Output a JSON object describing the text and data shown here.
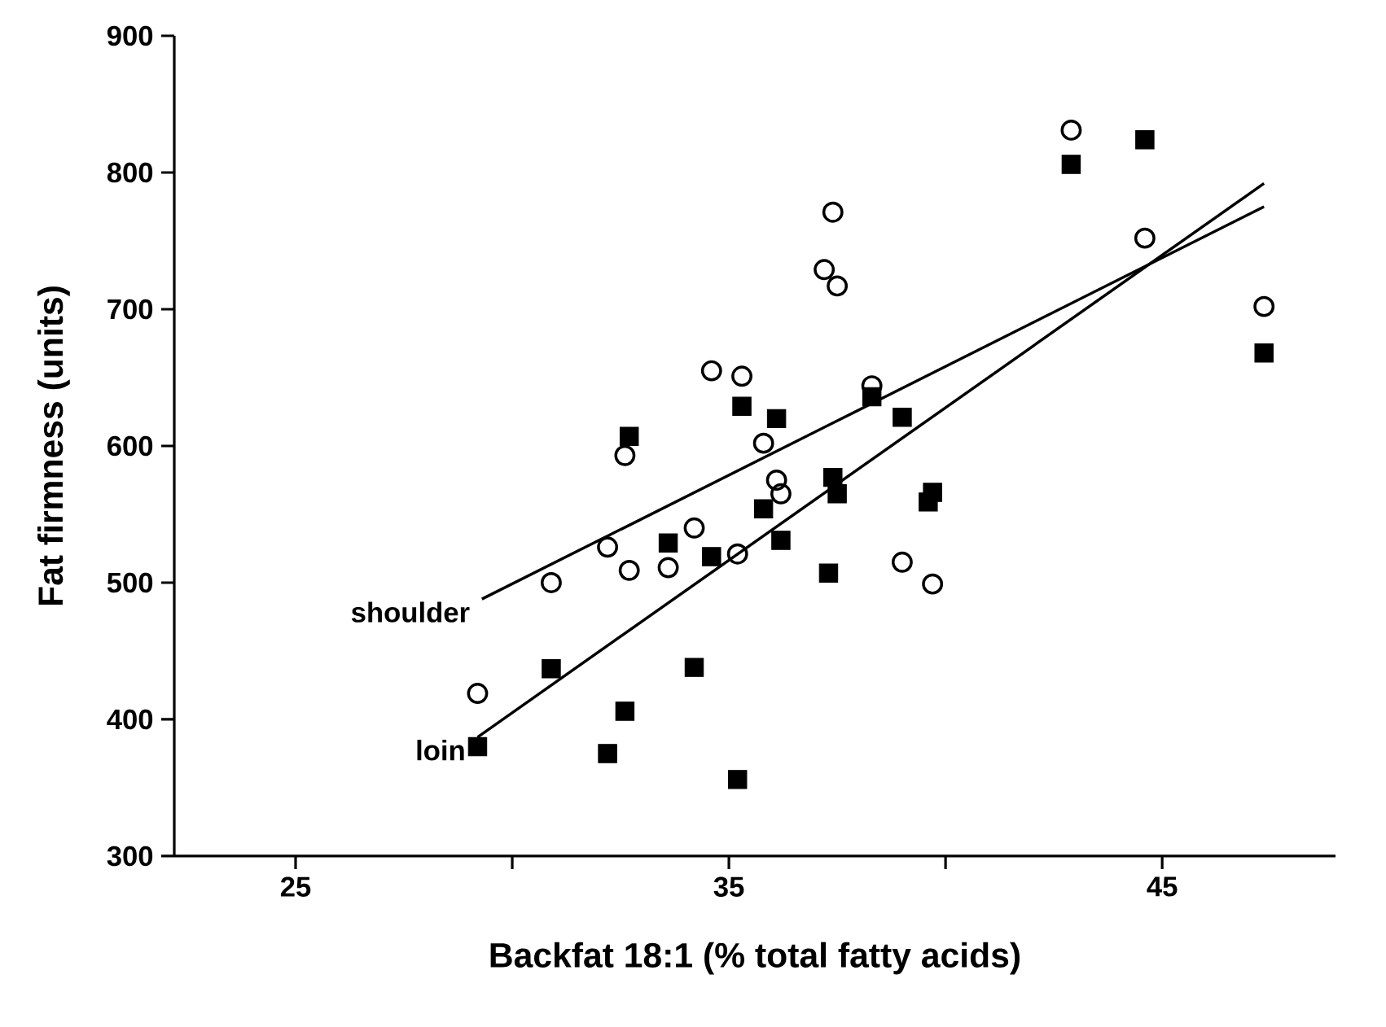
{
  "chart_data": {
    "type": "scatter",
    "xlabel": "Backfat 18:1 (% total fatty acids)",
    "ylabel": "Fat firmness (units)",
    "xlim": [
      22.2,
      49
    ],
    "ylim": [
      300,
      900
    ],
    "xticks": [
      25,
      {
        "value": 30,
        "label": null
      },
      35,
      {
        "value": 40,
        "label": null
      },
      45
    ],
    "yticks": [
      300,
      400,
      500,
      600,
      700,
      800,
      900
    ],
    "grid": false,
    "legend": false,
    "series": [
      {
        "marker": "circle",
        "color": "#000000",
        "x": [
          29.2,
          30.9,
          32.2,
          32.6,
          32.7,
          33.6,
          34.2,
          34.6,
          35.2,
          35.3,
          35.8,
          36.1,
          36.2,
          37.2,
          37.4,
          37.5,
          38.3,
          39.0,
          39.7,
          42.9,
          44.6,
          47.35
        ],
        "values": [
          419,
          500,
          526,
          593,
          509,
          511,
          540,
          655,
          521,
          651,
          602,
          575,
          565,
          729,
          771,
          717,
          644,
          515,
          499,
          831,
          752,
          702
        ]
      },
      {
        "marker": "square",
        "color": "#000000",
        "x": [
          29.2,
          30.9,
          32.6,
          32.2,
          34.2,
          35.2,
          33.6,
          34.6,
          35.8,
          36.2,
          37.3,
          37.4,
          37.5,
          39.7,
          39.6,
          35.3,
          36.1,
          39.0,
          38.3,
          42.9,
          44.6,
          47.35,
          32.7
        ],
        "values": [
          380,
          437,
          406,
          375,
          438,
          356,
          529,
          519,
          554,
          531,
          507,
          577,
          565,
          566,
          559,
          629,
          620,
          621,
          636,
          806,
          824,
          668,
          607
        ]
      },
      {
        "type": "line",
        "name": "shoulder",
        "color": "#000000",
        "x": [
          29.3,
          47.35
        ],
        "values": [
          488,
          775
        ]
      },
      {
        "type": "line",
        "name": "loin",
        "color": "#000000",
        "x": [
          29.2,
          47.35
        ],
        "values": [
          387,
          792
        ]
      }
    ]
  }
}
